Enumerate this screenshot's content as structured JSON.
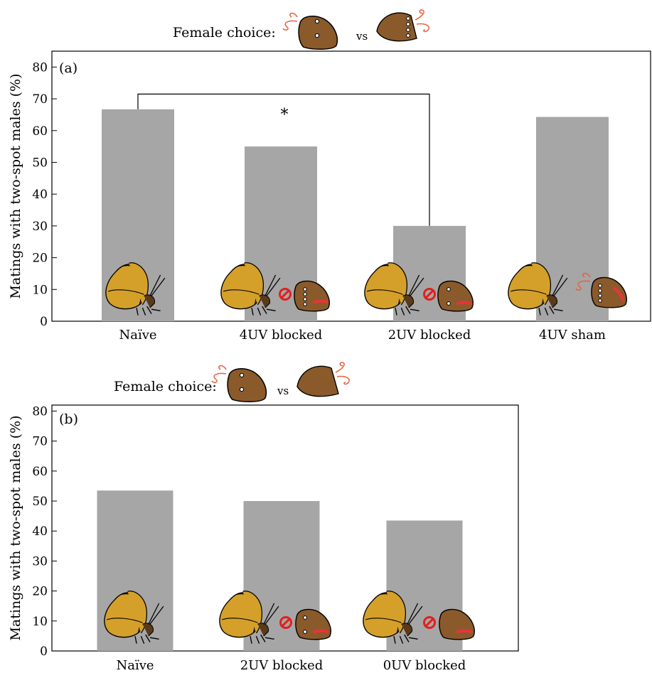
{
  "chart_data": [
    {
      "type": "bar",
      "panel_label": "(a)",
      "header": {
        "label": "Female choice:",
        "vs": "vs"
      },
      "ylabel": "Matings with  two-spot males (%)",
      "ylim": [
        0,
        85
      ],
      "yticks": [
        0,
        10,
        20,
        30,
        40,
        50,
        60,
        70,
        80
      ],
      "categories": [
        "Naïve",
        "4UV blocked",
        "2UV blocked",
        "4UV sham"
      ],
      "values": [
        66.7,
        55,
        30,
        64.3
      ],
      "bar_color": "#a6a6a6",
      "significance": {
        "from": 0,
        "to": 2,
        "bracket_y": 71.5,
        "label": "*"
      }
    },
    {
      "type": "bar",
      "panel_label": "(b)",
      "header": {
        "label": "Female choice:",
        "vs": "vs"
      },
      "ylabel": "Matings with  two-spot males (%)",
      "ylim": [
        0,
        82
      ],
      "yticks": [
        0,
        10,
        20,
        30,
        40,
        50,
        60,
        70,
        80
      ],
      "categories": [
        "Naïve",
        "2UV blocked",
        "0UV blocked"
      ],
      "values": [
        53.5,
        50,
        43.5
      ],
      "bar_color": "#a6a6a6"
    }
  ],
  "colors": {
    "butterfly_wing": "#d4a02a",
    "wing_brown": "#8b5a2b",
    "antenna": "#e8603c",
    "no_sign": "#e0201e",
    "blocked_mark": "#e8333c"
  },
  "icons": [
    "male-butterfly-icon",
    "female-butterfly-icon",
    "no-sign-icon"
  ]
}
